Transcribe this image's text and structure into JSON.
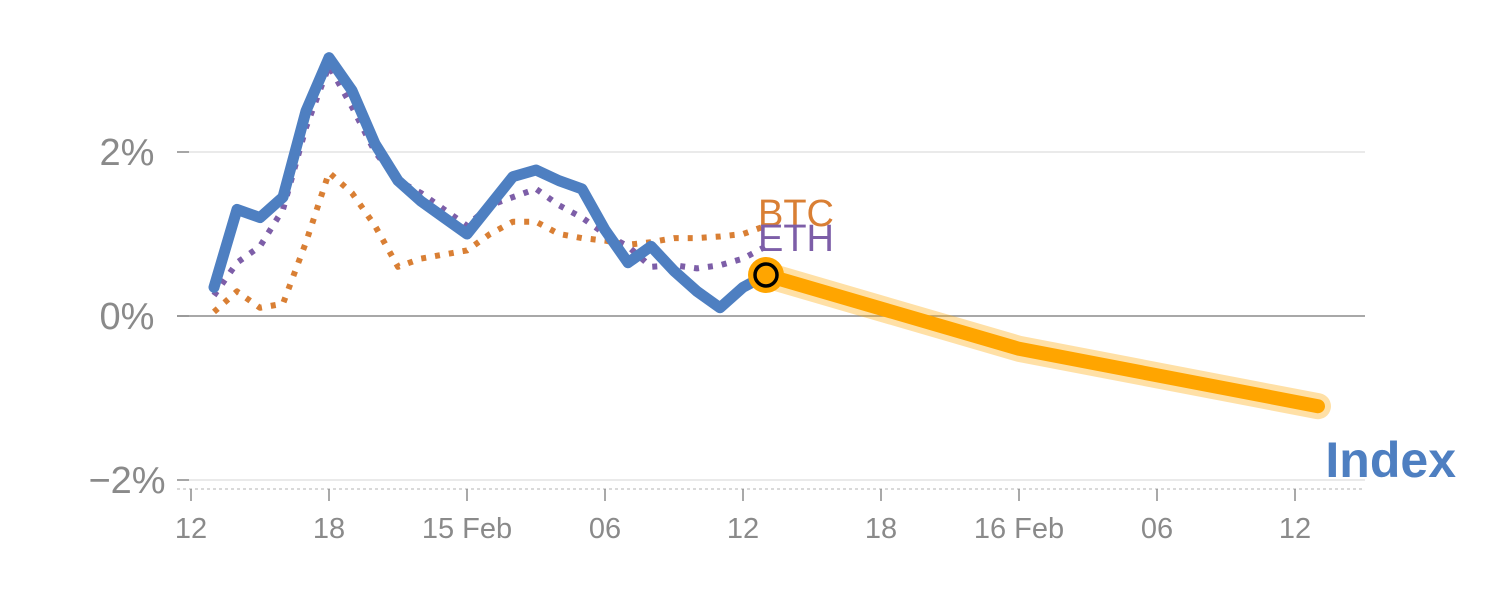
{
  "chart_data": {
    "type": "line",
    "y_ticks": [
      {
        "value": 2,
        "label": "2%"
      },
      {
        "value": 0,
        "label": "0%"
      },
      {
        "value": -2,
        "label": "−2%"
      }
    ],
    "ylim": [
      -2.05,
      3.2
    ],
    "x_ticks": [
      {
        "t": 0,
        "label": "12"
      },
      {
        "t": 6,
        "label": "18"
      },
      {
        "t": 12,
        "label": "15 Feb"
      },
      {
        "t": 18,
        "label": "06"
      },
      {
        "t": 24,
        "label": "12"
      },
      {
        "t": 30,
        "label": "18"
      },
      {
        "t": 36,
        "label": "16 Feb"
      },
      {
        "t": 42,
        "label": "06"
      },
      {
        "t": 48,
        "label": "12"
      }
    ],
    "xlim": [
      -0.5,
      50.5
    ],
    "grid": true,
    "series": [
      {
        "name": "BTC",
        "color": "#d97f34",
        "style": "dotted",
        "x": [
          1,
          2,
          3,
          4,
          5,
          6,
          7,
          8,
          9,
          10,
          11,
          12,
          13,
          14,
          15,
          16,
          17,
          18,
          19,
          20,
          21,
          22,
          23,
          24,
          25
        ],
        "y": [
          0.05,
          0.3,
          0.1,
          0.15,
          0.9,
          1.75,
          1.5,
          1.1,
          0.6,
          0.7,
          0.75,
          0.8,
          1.0,
          1.15,
          1.15,
          1.0,
          0.95,
          0.92,
          0.87,
          0.9,
          0.95,
          0.95,
          0.97,
          1.0,
          1.1
        ]
      },
      {
        "name": "ETH",
        "color": "#7d5ea8",
        "style": "dotted",
        "x": [
          1,
          2,
          3,
          4,
          5,
          6,
          7,
          8,
          9,
          10,
          11,
          12,
          13,
          14,
          15,
          16,
          17,
          18,
          19,
          20,
          21,
          22,
          23,
          24,
          25
        ],
        "y": [
          0.25,
          0.65,
          0.85,
          1.3,
          2.3,
          3.05,
          2.55,
          2.0,
          1.65,
          1.5,
          1.3,
          1.1,
          1.35,
          1.45,
          1.55,
          1.35,
          1.2,
          1.0,
          0.85,
          0.6,
          0.62,
          0.58,
          0.62,
          0.7,
          0.85
        ]
      },
      {
        "name": "Index",
        "color": "#4e7fc1",
        "style": "solid",
        "x": [
          1,
          2,
          3,
          4,
          5,
          6,
          7,
          8,
          9,
          10,
          11,
          12,
          13,
          14,
          15,
          16,
          17,
          18,
          19,
          20,
          21,
          22,
          23,
          24,
          25
        ],
        "y": [
          0.35,
          1.3,
          1.2,
          1.45,
          2.5,
          3.15,
          2.75,
          2.1,
          1.65,
          1.4,
          1.2,
          1.0,
          1.35,
          1.7,
          1.78,
          1.65,
          1.55,
          1.05,
          0.65,
          0.85,
          0.55,
          0.3,
          0.1,
          0.35,
          0.5
        ]
      }
    ],
    "forecast": {
      "color": "#ffa500",
      "x": [
        25,
        36,
        49
      ],
      "y": [
        0.5,
        -0.4,
        -1.1
      ]
    },
    "highlight_point": {
      "x": 25,
      "y": 0.5,
      "color": "#ffa500"
    },
    "labels": {
      "btc": "BTC",
      "eth": "ETH",
      "index": "Index"
    }
  }
}
